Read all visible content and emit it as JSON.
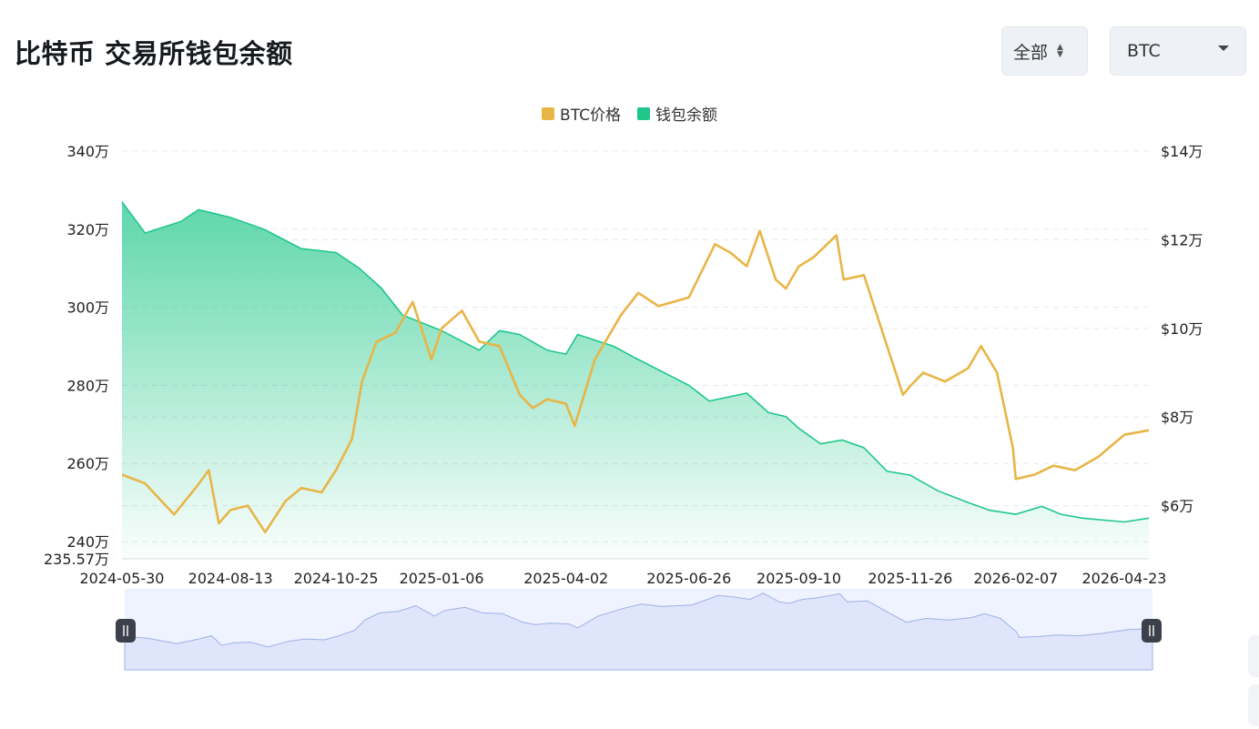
{
  "header": {
    "title": "比特币 交易所钱包余额"
  },
  "controls": {
    "range_label": "全部",
    "coin_label": "BTC"
  },
  "colors": {
    "price": "#e8b547",
    "balance": "#1fc78a",
    "grid": "#e6e9ee",
    "navigator": "#dfe6fb"
  },
  "chart_data": {
    "type": "line",
    "legend": [
      {
        "label": "BTC价格",
        "color": "#e8b547"
      },
      {
        "label": "钱包余额",
        "color": "#1fc78a"
      }
    ],
    "legend_position": "top-center",
    "grid": true,
    "x_ticks": [
      "2024-05-30",
      "2024-08-13",
      "2024-10-25",
      "2025-01-06",
      "2025-04-02",
      "2025-06-26",
      "2025-09-10",
      "2025-11-26",
      "2026-02-07",
      "2026-04-23"
    ],
    "y_left": {
      "ticks": [
        "340万",
        "320万",
        "300万",
        "280万",
        "260万",
        "240万"
      ],
      "min_label": "235.57万",
      "range": [
        2355700,
        3400000
      ],
      "unit": "BTC"
    },
    "y_right": {
      "ticks": [
        "$14万",
        "$12万",
        "$10万",
        "$8万",
        "$6万"
      ],
      "range": [
        48000,
        140000
      ],
      "unit": "USD"
    },
    "series": [
      {
        "name": "钱包余额",
        "axis": "left",
        "x": [
          "2024-05-30",
          "2024-06-15",
          "2024-07-10",
          "2024-07-22",
          "2024-08-13",
          "2024-09-05",
          "2024-10-01",
          "2024-10-25",
          "2024-11-10",
          "2024-11-25",
          "2024-12-10",
          "2025-01-06",
          "2025-02-01",
          "2025-02-15",
          "2025-03-01",
          "2025-03-20",
          "2025-04-02",
          "2025-04-10",
          "2025-05-05",
          "2025-05-20",
          "2025-06-26",
          "2025-07-10",
          "2025-08-05",
          "2025-08-20",
          "2025-09-01",
          "2025-09-10",
          "2025-09-25",
          "2025-10-10",
          "2025-10-25",
          "2025-11-10",
          "2025-11-26",
          "2025-12-15",
          "2026-01-05",
          "2026-01-20",
          "2026-02-07",
          "2026-02-25",
          "2026-03-10",
          "2026-03-25",
          "2026-04-23",
          "2026-05-10"
        ],
        "values": [
          3270000,
          3190000,
          3220000,
          3250000,
          3230000,
          3200000,
          3150000,
          3140000,
          3100000,
          3050000,
          2980000,
          2940000,
          2890000,
          2940000,
          2930000,
          2890000,
          2880000,
          2930000,
          2900000,
          2870000,
          2800000,
          2760000,
          2780000,
          2730000,
          2720000,
          2690000,
          2650000,
          2660000,
          2640000,
          2580000,
          2570000,
          2530000,
          2500000,
          2480000,
          2470000,
          2490000,
          2470000,
          2460000,
          2450000,
          2460000
        ]
      },
      {
        "name": "BTC价格",
        "axis": "right",
        "x": [
          "2024-05-30",
          "2024-06-15",
          "2024-07-05",
          "2024-07-20",
          "2024-07-29",
          "2024-08-05",
          "2024-08-13",
          "2024-08-25",
          "2024-09-06",
          "2024-09-20",
          "2024-10-01",
          "2024-10-15",
          "2024-10-25",
          "2024-11-05",
          "2024-11-12",
          "2024-11-22",
          "2024-12-05",
          "2024-12-17",
          "2024-12-30",
          "2025-01-06",
          "2025-01-20",
          "2025-02-01",
          "2025-02-15",
          "2025-03-01",
          "2025-03-10",
          "2025-03-20",
          "2025-04-02",
          "2025-04-08",
          "2025-04-22",
          "2025-05-10",
          "2025-05-22",
          "2025-06-05",
          "2025-06-26",
          "2025-07-14",
          "2025-07-25",
          "2025-08-05",
          "2025-08-14",
          "2025-08-25",
          "2025-09-01",
          "2025-09-10",
          "2025-09-20",
          "2025-10-06",
          "2025-10-11",
          "2025-10-25",
          "2025-11-05",
          "2025-11-21",
          "2025-11-26",
          "2025-12-05",
          "2025-12-20",
          "2026-01-05",
          "2026-01-14",
          "2026-01-25",
          "2026-02-05",
          "2026-02-07",
          "2026-02-20",
          "2026-03-05",
          "2026-03-20",
          "2026-04-05",
          "2026-04-23",
          "2026-05-10"
        ],
        "values": [
          67000,
          65000,
          58000,
          64000,
          68000,
          56000,
          59000,
          60000,
          54000,
          61000,
          64000,
          63000,
          68000,
          75000,
          88000,
          97000,
          99000,
          106000,
          93000,
          100000,
          104000,
          97000,
          96000,
          85000,
          82000,
          84000,
          83000,
          78000,
          93000,
          103000,
          108000,
          105000,
          107000,
          119000,
          117000,
          114000,
          122000,
          111000,
          109000,
          114000,
          116000,
          121000,
          111000,
          112000,
          101000,
          85000,
          87000,
          90000,
          88000,
          91000,
          96000,
          90000,
          73000,
          66000,
          67000,
          69000,
          68000,
          71000,
          76000,
          77000
        ]
      }
    ]
  }
}
